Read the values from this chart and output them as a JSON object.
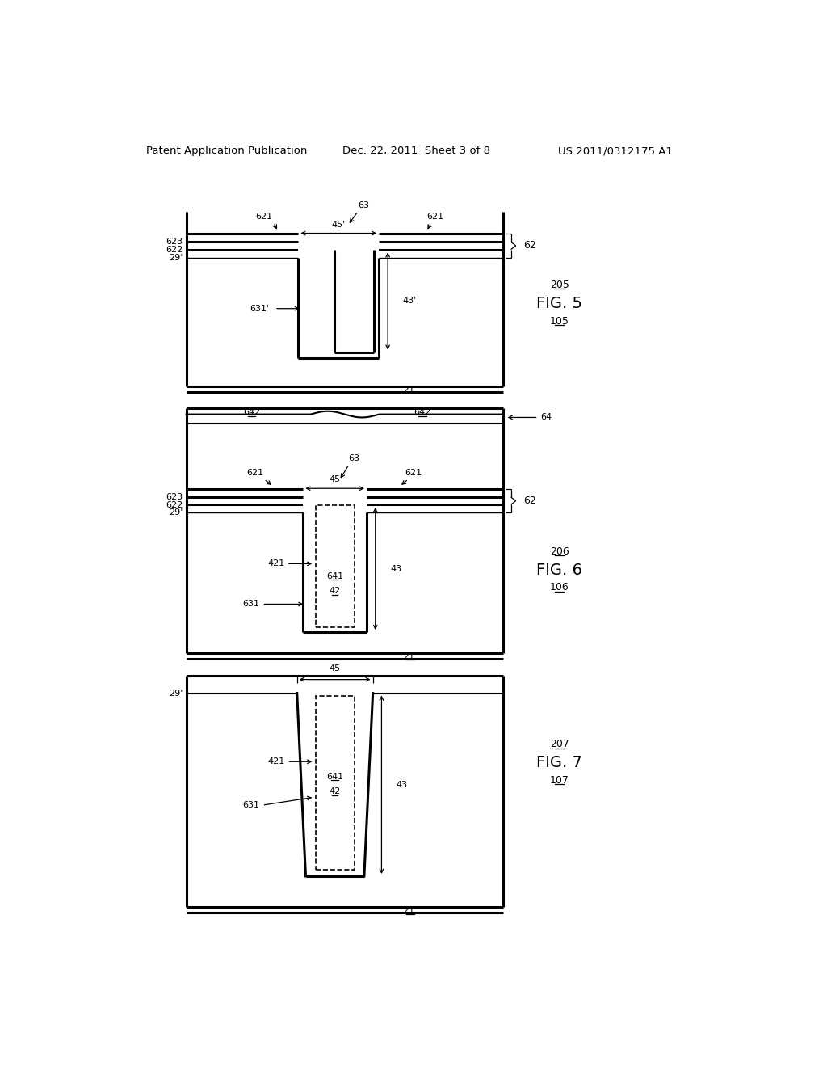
{
  "header_left": "Patent Application Publication",
  "header_mid": "Dec. 22, 2011  Sheet 3 of 8",
  "header_right": "US 2011/0312175 A1",
  "background": "#ffffff"
}
